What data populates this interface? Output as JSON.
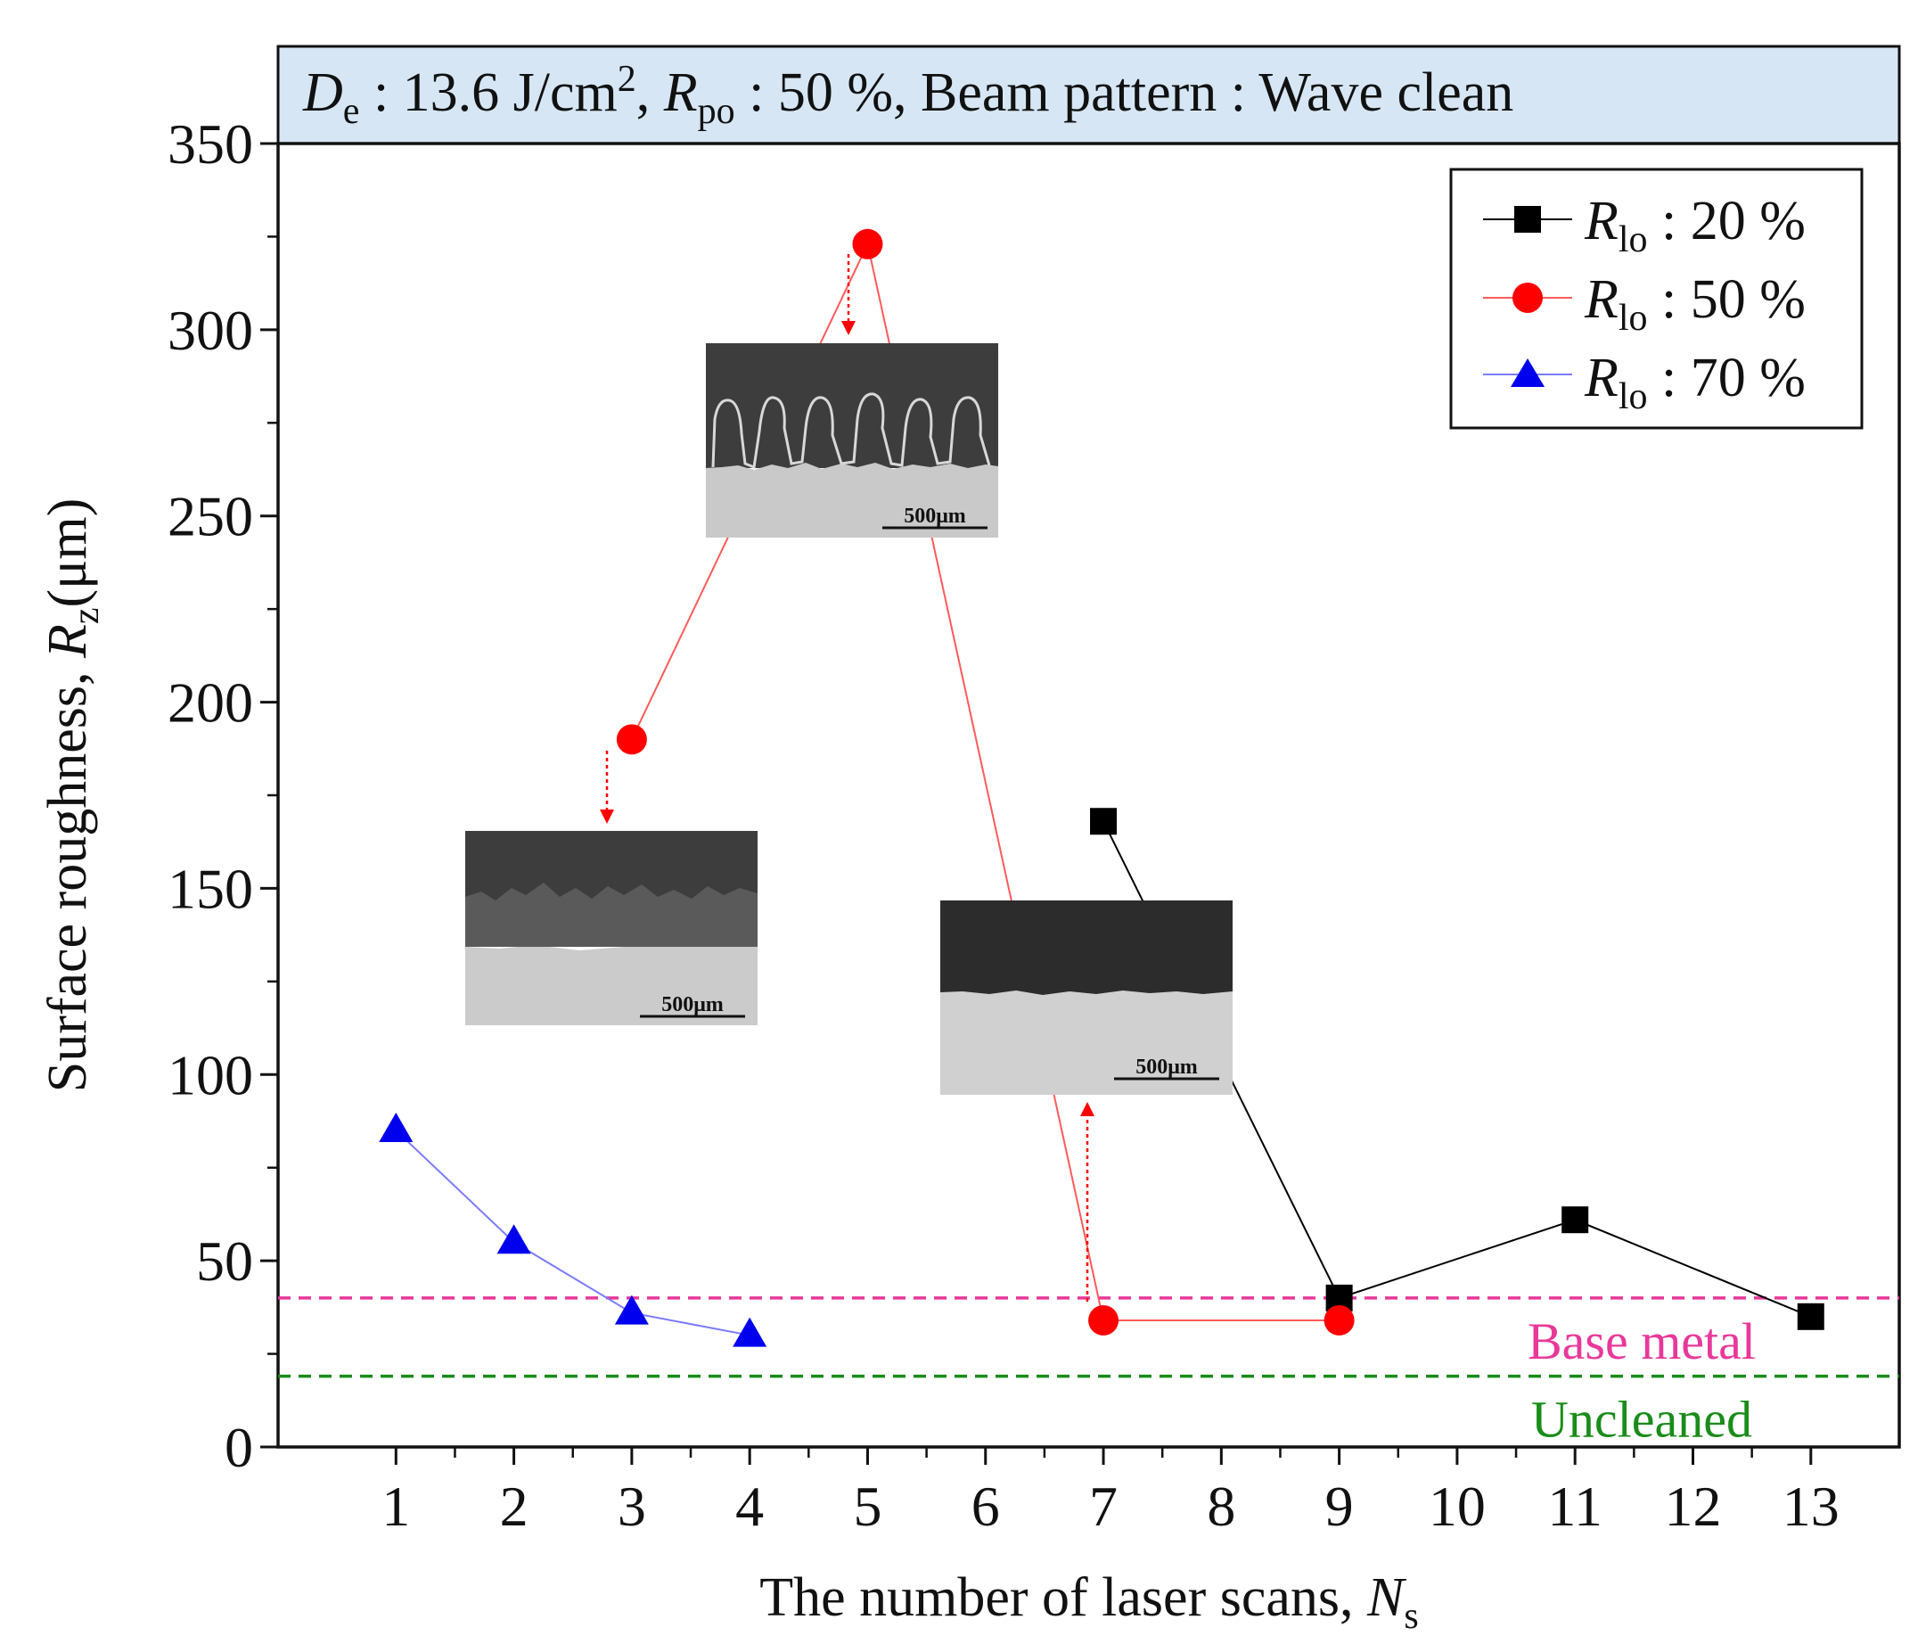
{
  "header": {
    "de_symbol": "D",
    "de_sub": "e",
    "de_value": " : 13.6 J/cm",
    "de_sup": "2",
    "rpo_sep": ", ",
    "rpo_symbol": "R",
    "rpo_sub": "po",
    "rpo_value": " : 50 %, Beam pattern : Wave clean"
  },
  "insets": [
    {
      "scale_label": "500μm"
    },
    {
      "scale_label": "500μm"
    },
    {
      "scale_label": "500μm"
    }
  ],
  "colors": {
    "s20": "#000000",
    "s50": "#ff0000",
    "s70": "#0000ee",
    "line50": "#ff5a5a",
    "line70": "#7b7bff",
    "base_metal": "#e8389a",
    "uncleaned": "#1a8c1a",
    "header_bg": "#d6e6f4"
  },
  "chart_data": {
    "type": "line",
    "title": "",
    "xlabel": "The number of laser scans, ",
    "xlabel_symbol": "N",
    "xlabel_sub": "s",
    "ylabel": "Surface roughness, ",
    "ylabel_symbol": "R",
    "ylabel_sub": "z",
    "ylabel_unit": "(μm)",
    "xlim": [
      0.0,
      13.75
    ],
    "ylim": [
      0,
      350
    ],
    "xticks": [
      1,
      2,
      3,
      4,
      5,
      6,
      7,
      8,
      9,
      10,
      11,
      12,
      13
    ],
    "yticks": [
      0,
      50,
      100,
      150,
      200,
      250,
      300,
      350
    ],
    "legend_position": "top-right",
    "series": [
      {
        "name": "R_lo : 20 %",
        "symbol": "R",
        "sub": "lo",
        "label": " : 20 %",
        "marker": "square",
        "x": [
          7,
          9,
          11,
          13
        ],
        "y": [
          168,
          40,
          61,
          35
        ]
      },
      {
        "name": "R_lo : 50 %",
        "symbol": "R",
        "sub": "lo",
        "label": " : 50 %",
        "marker": "circle",
        "x": [
          3,
          5,
          7,
          9
        ],
        "y": [
          190,
          323,
          34,
          34
        ]
      },
      {
        "name": "R_lo : 70 %",
        "symbol": "R",
        "sub": "lo",
        "label": " : 70 %",
        "marker": "triangle",
        "x": [
          1,
          2,
          3,
          4
        ],
        "y": [
          85,
          55,
          36,
          30
        ]
      }
    ],
    "reference_lines": [
      {
        "name": "Base metal",
        "label": "Base metal",
        "y": 40
      },
      {
        "name": "Uncleaned",
        "label": "Uncleaned",
        "y": 19
      }
    ]
  }
}
